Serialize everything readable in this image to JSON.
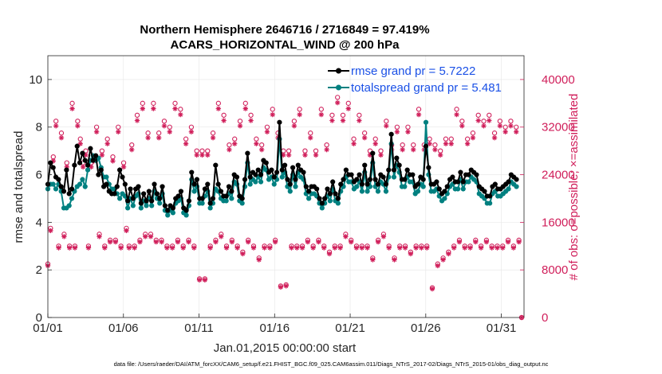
{
  "chart_data": {
    "type": "line",
    "title_line1": "Northern Hemisphere 2646716 / 2716849 = 97.419%",
    "title_line2": "ACARS_HORIZONTAL_WIND @ 200 hPa",
    "xlabel": "Jan.01,2015 00:00:00 start",
    "ylabel_left": "rmse and totalspread",
    "ylabel_right": "# of obs: o=possible; ×=assimilated",
    "xlim": [
      0,
      31.5
    ],
    "ylim_left": [
      0,
      11
    ],
    "ylim_right": [
      0,
      44000
    ],
    "x_ticks": [
      0,
      5,
      10,
      15,
      20,
      25,
      30
    ],
    "x_tick_labels": [
      "01/01",
      "01/06",
      "01/11",
      "01/16",
      "01/21",
      "01/26",
      "01/31"
    ],
    "y_left_ticks": [
      "0",
      "2",
      "4",
      "6",
      "8",
      "10"
    ],
    "y_left_tick_values": [
      0,
      2,
      4,
      6,
      8,
      10
    ],
    "y_right_ticks": [
      "0",
      "8000",
      "16000",
      "24000",
      "32000",
      "40000"
    ],
    "y_right_tick_values": [
      0,
      8000,
      16000,
      24000,
      32000,
      40000
    ],
    "legend": [
      "rmse grand pr = 5.7222",
      "totalspread grand pr = 5.481"
    ],
    "colors": {
      "rmse": "#000000",
      "spread": "#008080",
      "obs": "#d01e5a",
      "legend_text": "#1a50e6"
    },
    "footnote": "data file: /Users/raeder/DAI/ATM_forcXX/CAM6_setup/f.e21.FHIST_BGC.f09_025.CAM6assim.011/Diags_NTrS_2017-02/Diags_NTrS_2015-01/obs_diag_output.nc",
    "series": [
      {
        "name": "rmse",
        "values": [
          5.6,
          6.5,
          6.3,
          5.9,
          5.8,
          5.5,
          5.3,
          6.2,
          5.2,
          5.4,
          6.4,
          7.2,
          6.5,
          6.9,
          6.6,
          6.4,
          7.1,
          6.6,
          6.8,
          6.0,
          6.2,
          5.5,
          5.6,
          5.3,
          5.2,
          5.2,
          5.5,
          6.2,
          5.9,
          5.6,
          4.9,
          5.4,
          5.0,
          5.4,
          5.5,
          4.8,
          5.2,
          4.9,
          5.3,
          4.9,
          5.6,
          5.2,
          5.0,
          5.5,
          4.7,
          4.5,
          4.7,
          4.6,
          5.0,
          5.1,
          5.3,
          4.6,
          4.5,
          4.9,
          6.1,
          5.6,
          5.8,
          5.0,
          5.0,
          5.4,
          5.6,
          4.8,
          5.0,
          6.4,
          5.6,
          5.3,
          5.1,
          5.1,
          5.5,
          5.3,
          6.0,
          5.9,
          5.1,
          5.0,
          5.8,
          6.9,
          5.9,
          6.1,
          6.0,
          6.2,
          6.0,
          6.6,
          6.5,
          6.1,
          6.2,
          5.9,
          6.1,
          8.2,
          6.2,
          6.4,
          5.8,
          5.6,
          6.3,
          5.8,
          6.4,
          6.2,
          6.1,
          5.5,
          5.3,
          5.5,
          5.5,
          5.4,
          5.0,
          4.8,
          5.0,
          5.4,
          5.2,
          5.7,
          5.2,
          5.0,
          5.6,
          5.8,
          6.2,
          6.0,
          6.0,
          5.7,
          5.8,
          6.0,
          5.6,
          6.4,
          5.6,
          5.8,
          6.9,
          5.8,
          5.6,
          6.0,
          5.9,
          5.6,
          6.2,
          7.7,
          6.2,
          6.7,
          6.4,
          5.8,
          5.8,
          6.2,
          6.0,
          6.0,
          5.5,
          5.6,
          5.9,
          5.8,
          7.2,
          6.3,
          5.6,
          5.6,
          5.7,
          5.4,
          5.2,
          5.3,
          5.5,
          5.8,
          5.9,
          5.7,
          5.7,
          6.1,
          5.7,
          6.0,
          6.0,
          6.2,
          6.1,
          6.0,
          5.5,
          5.4,
          5.3,
          5.1,
          5.1,
          5.5,
          5.6,
          5.4,
          5.4,
          5.5,
          5.6,
          5.7,
          6.0,
          5.9,
          5.8
        ]
      },
      {
        "name": "totalspread",
        "values": [
          5.4,
          5.6,
          5.6,
          5.4,
          5.6,
          5.3,
          4.6,
          4.6,
          4.7,
          5.0,
          5.3,
          5.5,
          5.6,
          5.8,
          5.5,
          6.2,
          6.6,
          6.8,
          6.6,
          6.7,
          6.3,
          5.9,
          5.9,
          5.6,
          5.4,
          5.4,
          5.2,
          5.0,
          5.2,
          5.1,
          4.6,
          5.0,
          4.7,
          5.1,
          5.2,
          4.6,
          4.9,
          4.7,
          5.0,
          4.7,
          5.3,
          5.0,
          4.8,
          5.2,
          4.5,
          4.3,
          4.5,
          4.4,
          4.8,
          4.9,
          5.0,
          4.4,
          4.3,
          4.7,
          5.8,
          5.3,
          5.5,
          4.8,
          4.8,
          5.1,
          5.3,
          4.6,
          4.8,
          5.4,
          5.3,
          5.0,
          4.9,
          4.9,
          5.2,
          5.0,
          5.7,
          5.6,
          4.9,
          4.8,
          5.5,
          6.5,
          5.6,
          5.8,
          5.7,
          5.9,
          5.7,
          6.3,
          6.2,
          5.8,
          5.9,
          5.6,
          5.8,
          7.5,
          5.9,
          6.1,
          5.5,
          5.3,
          6.0,
          5.5,
          6.1,
          5.9,
          5.8,
          5.2,
          5.0,
          5.2,
          5.2,
          5.1,
          4.8,
          4.6,
          4.8,
          5.1,
          4.9,
          5.4,
          4.9,
          4.8,
          5.3,
          5.5,
          5.9,
          5.7,
          5.7,
          5.4,
          5.5,
          5.7,
          5.3,
          6.1,
          5.3,
          5.5,
          6.5,
          5.5,
          5.3,
          5.7,
          5.6,
          5.3,
          5.9,
          7.3,
          5.9,
          6.4,
          6.1,
          5.5,
          5.5,
          5.9,
          5.7,
          5.7,
          5.2,
          5.3,
          5.6,
          5.5,
          8.2,
          6.0,
          5.3,
          5.3,
          5.4,
          5.1,
          4.9,
          5.0,
          5.2,
          5.5,
          5.6,
          5.4,
          5.4,
          5.8,
          5.4,
          5.7,
          5.7,
          5.9,
          5.8,
          5.7,
          5.2,
          5.1,
          5.0,
          4.8,
          4.8,
          5.2,
          5.3,
          5.1,
          5.1,
          5.2,
          5.3,
          5.4,
          5.7,
          5.6,
          5.5
        ]
      },
      {
        "name": "obs_possible",
        "values": [
          9000,
          15000,
          27000,
          33000,
          12000,
          31000,
          14000,
          26000,
          12000,
          36000,
          12000,
          33000,
          30000,
          26000,
          28000,
          12000,
          26000,
          27000,
          32000,
          14000,
          28000,
          12000,
          30000,
          13000,
          27000,
          13000,
          32000,
          12000,
          26000,
          15000,
          12000,
          29000,
          12000,
          34000,
          13000,
          36000,
          14000,
          31000,
          14000,
          36000,
          13000,
          31000,
          13000,
          33000,
          12000,
          32000,
          12000,
          36000,
          13000,
          35000,
          12000,
          30000,
          13000,
          32000,
          12000,
          28000,
          6500,
          28000,
          6500,
          28000,
          12000,
          31000,
          13000,
          36000,
          14000,
          34000,
          12000,
          29000,
          13000,
          30000,
          12000,
          33000,
          11000,
          36000,
          13000,
          34000,
          12000,
          30000,
          10000,
          29000,
          12000,
          32000,
          12000,
          35000,
          13000,
          31000,
          5300,
          28000,
          5500,
          28000,
          12000,
          33000,
          12000,
          35000,
          12000,
          28000,
          13000,
          31000,
          12000,
          28000,
          13000,
          35000,
          12000,
          29000,
          11000,
          34000,
          12000,
          37000,
          12000,
          34000,
          14000,
          36000,
          13000,
          30000,
          12000,
          34000,
          12000,
          31000,
          12000,
          28000,
          10000,
          30000,
          13000,
          28000,
          14000,
          33000,
          12000,
          29000,
          10000,
          32000,
          12000,
          29000,
          12000,
          32000,
          11000,
          29000,
          12000,
          35000,
          12000,
          29000,
          12000,
          30000,
          5000,
          29000,
          9000,
          28000,
          10000,
          30000,
          11000,
          30000,
          12000,
          35000,
          13000,
          33000,
          12000,
          30000,
          12000,
          31000,
          13000,
          34000,
          12000,
          33000,
          13000,
          34000,
          12000,
          31000,
          12000,
          33000,
          12000,
          32000,
          13000,
          33000,
          12000,
          32000,
          13000,
          0
        ]
      },
      {
        "name": "obs_assimilated",
        "values": [
          8700,
          14600,
          26300,
          32200,
          11700,
          30200,
          13600,
          25300,
          11700,
          35100,
          11700,
          32200,
          29200,
          25300,
          27300,
          11700,
          25300,
          26300,
          31200,
          13600,
          27300,
          11700,
          29200,
          12700,
          26300,
          12700,
          31200,
          11700,
          25300,
          14600,
          11700,
          28200,
          11700,
          33100,
          12700,
          35100,
          13600,
          30200,
          13600,
          35100,
          12700,
          30200,
          12700,
          32200,
          11700,
          31200,
          11700,
          35100,
          12700,
          34100,
          11700,
          29200,
          12700,
          31200,
          11700,
          27300,
          6300,
          27300,
          6300,
          27300,
          11700,
          30200,
          12700,
          35100,
          13600,
          33100,
          11700,
          28200,
          12700,
          29200,
          11700,
          32200,
          10700,
          35100,
          12700,
          33100,
          11700,
          29200,
          9700,
          28200,
          11700,
          31200,
          11700,
          34100,
          12700,
          30200,
          5100,
          27300,
          5300,
          27300,
          11700,
          32200,
          11700,
          34100,
          11700,
          27300,
          12700,
          30200,
          11700,
          27300,
          12700,
          34100,
          11700,
          28200,
          10700,
          33100,
          11700,
          36100,
          11700,
          33100,
          13600,
          35100,
          12700,
          29200,
          11700,
          33100,
          11700,
          30200,
          11700,
          27300,
          9700,
          29200,
          12700,
          27300,
          13600,
          32200,
          11700,
          28200,
          9700,
          31200,
          11700,
          28200,
          11700,
          31200,
          10700,
          28200,
          11700,
          34100,
          11700,
          28200,
          11700,
          29200,
          4800,
          28200,
          8700,
          27300,
          9700,
          29200,
          10700,
          29200,
          11700,
          34100,
          12700,
          32200,
          11700,
          29200,
          11700,
          30200,
          12700,
          33100,
          11700,
          32200,
          12700,
          33100,
          11700,
          30200,
          11700,
          32200,
          11700,
          31200,
          12700,
          32200,
          11700,
          31200,
          12700,
          0
        ]
      }
    ]
  }
}
